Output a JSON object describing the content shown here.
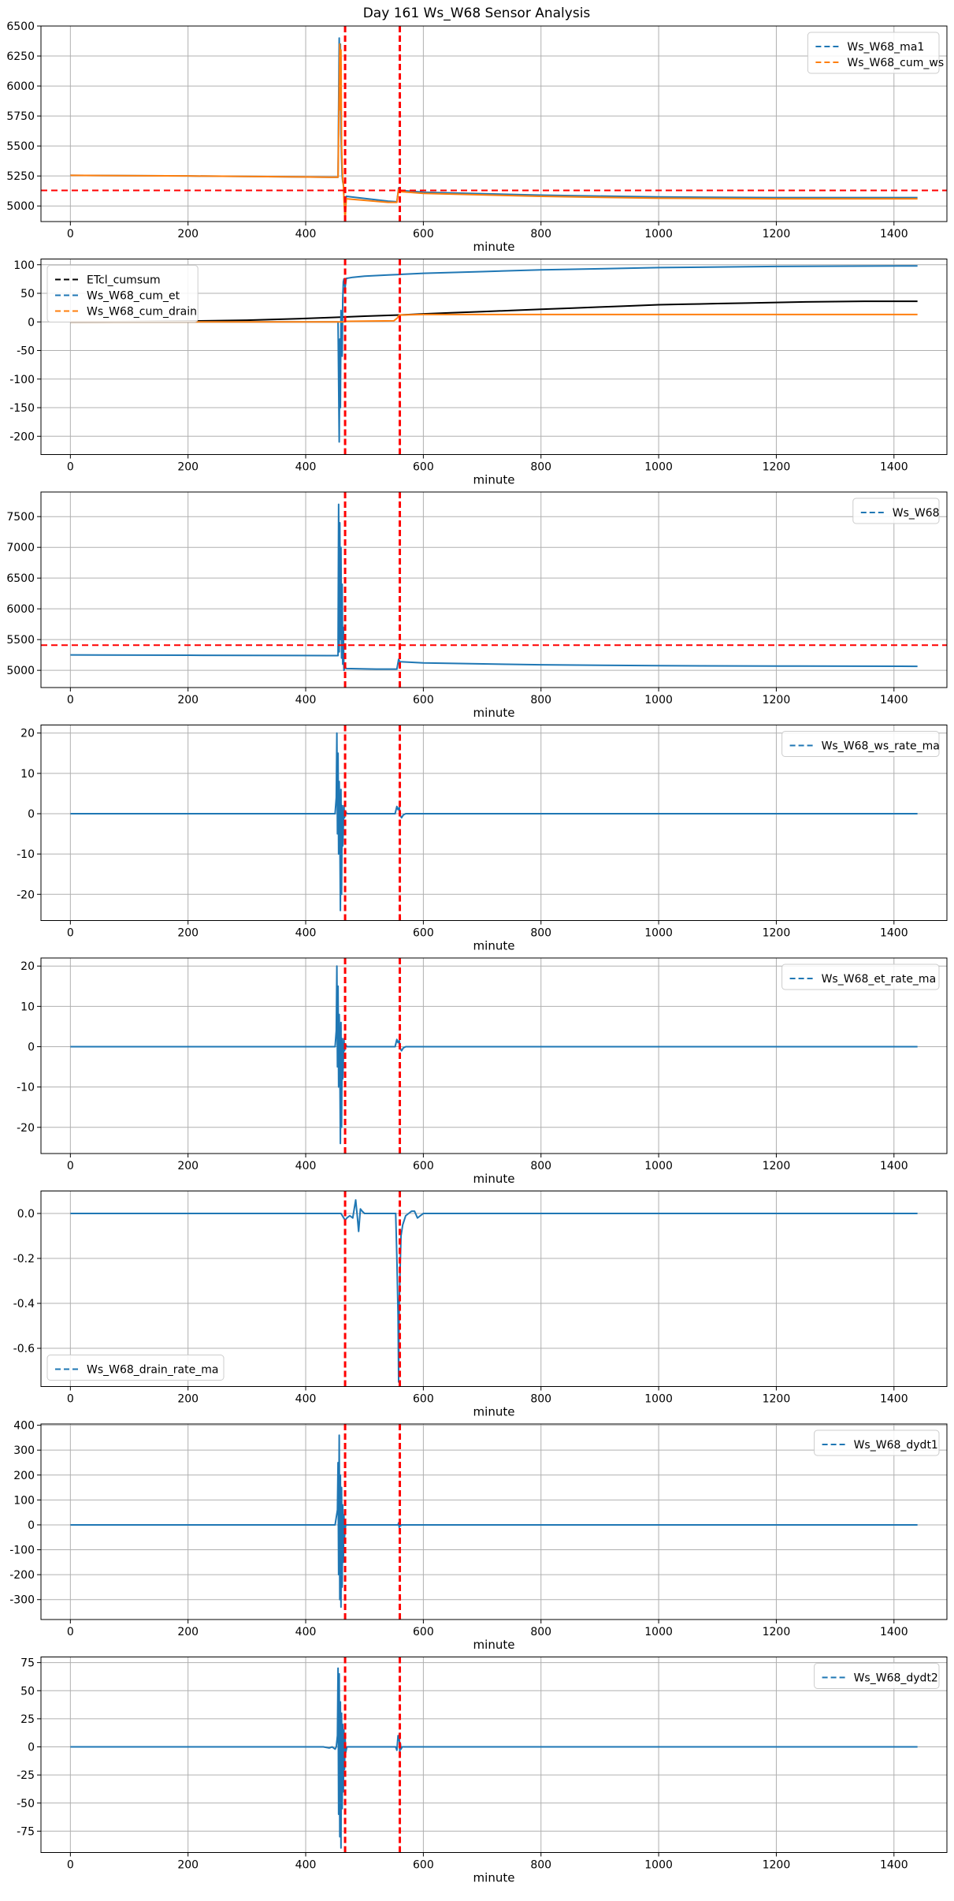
{
  "figure": {
    "title": "Day 161 Ws_W68 Sensor Analysis"
  },
  "colors": {
    "blue": "#1f77b4",
    "orange": "#ff7f0e",
    "black": "#000000",
    "red": "#ff0000",
    "grid": "#b0b0b0"
  },
  "chart_data": [
    {
      "type": "line",
      "xlabel": "minute",
      "ylabel": "",
      "xlim": [
        -50,
        1490
      ],
      "ylim": [
        4870,
        6500
      ],
      "grid": true,
      "xticks": [
        0,
        200,
        400,
        600,
        800,
        1000,
        1200,
        1400
      ],
      "yticks": [
        5000,
        5250,
        5500,
        5750,
        6000,
        6250,
        6500
      ],
      "ytick_labels": [
        "5000",
        "5250",
        "5500",
        "5750",
        "6000",
        "6250",
        "6500"
      ],
      "legend": {
        "position": "top-right",
        "entries": [
          "Ws_W68_ma1",
          "Ws_W68_cum_ws"
        ]
      },
      "vlines": [
        467,
        560
      ],
      "hlines": [
        5130
      ],
      "series": [
        {
          "name": "Ws_W68_ma1",
          "color": "#1f77b4",
          "x": [
            0,
            200,
            440,
            455,
            457,
            458,
            459,
            460,
            461,
            462,
            463,
            464,
            465,
            467,
            469,
            540,
            555,
            558,
            560,
            600,
            800,
            1000,
            1200,
            1440
          ],
          "y": [
            5255,
            5250,
            5240,
            5240,
            6400,
            5900,
            6350,
            5600,
            5400,
            5250,
            5200,
            5180,
            5080,
            4960,
            5080,
            5040,
            5035,
            5150,
            5130,
            5115,
            5090,
            5075,
            5070,
            5070
          ]
        },
        {
          "name": "Ws_W68_cum_ws",
          "color": "#ff7f0e",
          "x": [
            0,
            200,
            440,
            455,
            458,
            459,
            460,
            461,
            462,
            463,
            464,
            465,
            467,
            469,
            540,
            555,
            558,
            560,
            600,
            800,
            1000,
            1200,
            1440
          ],
          "y": [
            5255,
            5250,
            5240,
            5240,
            6350,
            5800,
            6300,
            5500,
            5350,
            5220,
            5180,
            5060,
            4880,
            5060,
            5030,
            5030,
            5140,
            5120,
            5105,
            5080,
            5065,
            5060,
            5060
          ]
        }
      ]
    },
    {
      "type": "line",
      "xlabel": "minute",
      "ylabel": "",
      "xlim": [
        -50,
        1490
      ],
      "ylim": [
        -232,
        110
      ],
      "grid": true,
      "xticks": [
        0,
        200,
        400,
        600,
        800,
        1000,
        1200,
        1400
      ],
      "yticks": [
        -200,
        -150,
        -100,
        -50,
        0,
        50,
        100
      ],
      "ytick_labels": [
        "-200",
        "-150",
        "-100",
        "-50",
        "0",
        "50",
        "100"
      ],
      "legend": {
        "position": "top-left",
        "entries": [
          "ETcl_cumsum",
          "Ws_W68_cum_et",
          "Ws_W68_cum_drain"
        ]
      },
      "vlines": [
        467,
        560
      ],
      "hlines": [],
      "series": [
        {
          "name": "ETcl_cumsum",
          "color": "#000000",
          "x": [
            0,
            100,
            200,
            300,
            400,
            450,
            500,
            560,
            600,
            650,
            700,
            750,
            800,
            850,
            900,
            950,
            1000,
            1050,
            1100,
            1150,
            1200,
            1250,
            1300,
            1350,
            1440
          ],
          "y": [
            0,
            0.5,
            1.5,
            3,
            6,
            8,
            10,
            12,
            14,
            16,
            18,
            20,
            22,
            24,
            26,
            28,
            30,
            31,
            32,
            33,
            34,
            35,
            35.5,
            36,
            36
          ]
        },
        {
          "name": "Ws_W68_cum_et",
          "color": "#1f77b4",
          "x": [
            0,
            200,
            440,
            455,
            457,
            458,
            459,
            460,
            461,
            462,
            463,
            464,
            465,
            467,
            469,
            480,
            500,
            540,
            560,
            600,
            700,
            800,
            900,
            1000,
            1200,
            1440
          ],
          "y": [
            0,
            0,
            0,
            0,
            -210,
            -30,
            -150,
            20,
            -20,
            -60,
            40,
            70,
            75,
            60,
            76,
            78,
            80,
            82,
            83,
            85,
            88,
            91,
            93,
            95,
            97,
            98
          ]
        },
        {
          "name": "Ws_W68_cum_drain",
          "color": "#ff7f0e",
          "x": [
            0,
            200,
            460,
            467,
            469,
            550,
            556,
            558,
            560,
            600,
            700,
            1440
          ],
          "y": [
            0,
            0,
            0,
            0,
            1,
            2,
            7,
            11,
            12,
            13,
            13,
            13
          ]
        }
      ]
    },
    {
      "type": "line",
      "xlabel": "minute",
      "ylabel": "",
      "xlim": [
        -50,
        1490
      ],
      "ylim": [
        4720,
        7900
      ],
      "grid": true,
      "xticks": [
        0,
        200,
        400,
        600,
        800,
        1000,
        1200,
        1400
      ],
      "yticks": [
        5000,
        5500,
        6000,
        6500,
        7000,
        7500
      ],
      "ytick_labels": [
        "5000",
        "5500",
        "6000",
        "6500",
        "7000",
        "7500"
      ],
      "legend": {
        "position": "top-right",
        "entries": [
          "Ws_W68"
        ]
      },
      "vlines": [
        467,
        560
      ],
      "hlines": [
        5410
      ],
      "series": [
        {
          "name": "Ws_W68",
          "color": "#1f77b4",
          "x": [
            0,
            200,
            440,
            455,
            456,
            457,
            458,
            459,
            460,
            461,
            462,
            463,
            464,
            465,
            467,
            469,
            520,
            555,
            558,
            560,
            600,
            800,
            1000,
            1200,
            1440
          ],
          "y": [
            5250,
            5245,
            5240,
            5240,
            7700,
            5300,
            7400,
            5500,
            7000,
            5200,
            6400,
            5100,
            5700,
            5000,
            5050,
            5030,
            5020,
            5020,
            5180,
            5140,
            5120,
            5090,
            5075,
            5070,
            5065
          ]
        }
      ]
    },
    {
      "type": "line",
      "xlabel": "minute",
      "ylabel": "",
      "xlim": [
        -50,
        1490
      ],
      "ylim": [
        -26.5,
        22
      ],
      "grid": true,
      "xticks": [
        0,
        200,
        400,
        600,
        800,
        1000,
        1200,
        1400
      ],
      "yticks": [
        -20,
        -10,
        0,
        10,
        20
      ],
      "ytick_labels": [
        "-20",
        "-10",
        "0",
        "10",
        "20"
      ],
      "legend": {
        "position": "top-right",
        "entries": [
          "Ws_W68_ws_rate_ma"
        ]
      },
      "vlines": [
        467,
        560
      ],
      "hlines": [],
      "series": [
        {
          "name": "Ws_W68_ws_rate_ma",
          "color": "#1f77b4",
          "x": [
            0,
            440,
            450,
            452,
            453,
            454,
            455,
            456,
            457,
            458,
            459,
            460,
            461,
            462,
            463,
            464,
            465,
            466,
            468,
            470,
            480,
            540,
            552,
            555,
            557,
            559,
            561,
            563,
            566,
            570,
            600,
            1440
          ],
          "y": [
            0,
            0,
            0,
            4,
            20,
            -5,
            15,
            -10,
            8,
            -3,
            -24,
            6,
            -20,
            2,
            -8,
            -3,
            2,
            -1,
            0.5,
            0,
            0,
            0,
            0,
            1.8,
            1,
            1.5,
            -0.5,
            -1,
            -0.3,
            0,
            0,
            0
          ]
        }
      ]
    },
    {
      "type": "line",
      "xlabel": "minute",
      "ylabel": "",
      "xlim": [
        -50,
        1490
      ],
      "ylim": [
        -26.5,
        22
      ],
      "grid": true,
      "xticks": [
        0,
        200,
        400,
        600,
        800,
        1000,
        1200,
        1400
      ],
      "yticks": [
        -20,
        -10,
        0,
        10,
        20
      ],
      "ytick_labels": [
        "-20",
        "-10",
        "0",
        "10",
        "20"
      ],
      "legend": {
        "position": "top-right",
        "entries": [
          "Ws_W68_et_rate_ma"
        ]
      },
      "vlines": [
        467,
        560
      ],
      "hlines": [],
      "series": [
        {
          "name": "Ws_W68_et_rate_ma",
          "color": "#1f77b4",
          "x": [
            0,
            440,
            450,
            452,
            453,
            454,
            455,
            456,
            457,
            458,
            459,
            460,
            461,
            462,
            463,
            464,
            465,
            466,
            468,
            470,
            480,
            540,
            552,
            555,
            557,
            559,
            561,
            563,
            566,
            570,
            600,
            1440
          ],
          "y": [
            0,
            0,
            0,
            4,
            20,
            -5,
            15,
            -10,
            8,
            -3,
            -24,
            6,
            -20,
            2,
            -8,
            -3,
            2,
            -1,
            0.5,
            0,
            0,
            0,
            0,
            1.8,
            1,
            1.5,
            -0.5,
            -1,
            -0.3,
            0,
            0,
            0
          ]
        }
      ]
    },
    {
      "type": "line",
      "xlabel": "minute",
      "ylabel": "",
      "xlim": [
        -50,
        1490
      ],
      "ylim": [
        -0.77,
        0.1
      ],
      "grid": true,
      "xticks": [
        0,
        200,
        400,
        600,
        800,
        1000,
        1200,
        1400
      ],
      "yticks": [
        -0.6,
        -0.4,
        -0.2,
        0.0
      ],
      "ytick_labels": [
        "-0.6",
        "-0.4",
        "-0.2",
        "0.0"
      ],
      "legend": {
        "position": "bottom-left",
        "entries": [
          "Ws_W68_drain_rate_ma"
        ]
      },
      "vlines": [
        467,
        560
      ],
      "hlines": [],
      "series": [
        {
          "name": "Ws_W68_drain_rate_ma",
          "color": "#1f77b4",
          "x": [
            0,
            460,
            467,
            470,
            475,
            480,
            485,
            488,
            490,
            493,
            496,
            500,
            540,
            553,
            555,
            557,
            558,
            559,
            560,
            562,
            565,
            570,
            575,
            580,
            585,
            590,
            600,
            1440
          ],
          "y": [
            0,
            0,
            -0.03,
            -0.02,
            -0.01,
            -0.02,
            0.06,
            -0.02,
            -0.08,
            0.02,
            0.01,
            0,
            0,
            0,
            -0.2,
            -0.45,
            -0.75,
            -0.4,
            -0.3,
            -0.1,
            -0.05,
            -0.01,
            0,
            0.01,
            0.01,
            -0.02,
            0,
            0
          ]
        }
      ]
    },
    {
      "type": "line",
      "xlabel": "minute",
      "ylabel": "",
      "xlim": [
        -50,
        1490
      ],
      "ylim": [
        -380,
        405
      ],
      "grid": true,
      "xticks": [
        0,
        200,
        400,
        600,
        800,
        1000,
        1200,
        1400
      ],
      "yticks": [
        -300,
        -200,
        -100,
        0,
        100,
        200,
        300,
        400
      ],
      "ytick_labels": [
        "-300",
        "-200",
        "-100",
        "0",
        "100",
        "200",
        "300",
        "400"
      ],
      "legend": {
        "position": "top-right",
        "entries": [
          "Ws_W68_dydt1"
        ]
      },
      "vlines": [
        467,
        560
      ],
      "hlines": [],
      "series": [
        {
          "name": "Ws_W68_dydt1",
          "color": "#1f77b4",
          "x": [
            0,
            450,
            454,
            455,
            456,
            457,
            458,
            459,
            460,
            461,
            462,
            463,
            464,
            465,
            466,
            468,
            540,
            557,
            558,
            559,
            560,
            561,
            563,
            1440
          ],
          "y": [
            0,
            0,
            60,
            250,
            -200,
            360,
            -300,
            200,
            -330,
            150,
            -250,
            80,
            -150,
            40,
            -50,
            0,
            0,
            0,
            8,
            -10,
            6,
            -4,
            0,
            0
          ]
        }
      ]
    },
    {
      "type": "line",
      "xlabel": "minute",
      "ylabel": "",
      "xlim": [
        -50,
        1490
      ],
      "ylim": [
        -94,
        80
      ],
      "grid": true,
      "xticks": [
        0,
        200,
        400,
        600,
        800,
        1000,
        1200,
        1400
      ],
      "yticks": [
        -75,
        -50,
        -25,
        0,
        25,
        50,
        75
      ],
      "ytick_labels": [
        "-75",
        "-50",
        "-25",
        "0",
        "25",
        "50",
        "75"
      ],
      "legend": {
        "position": "top-right",
        "entries": [
          "Ws_W68_dydt2"
        ]
      },
      "vlines": [
        467,
        560
      ],
      "hlines": [],
      "series": [
        {
          "name": "Ws_W68_dydt2",
          "color": "#1f77b4",
          "x": [
            0,
            430,
            440,
            445,
            450,
            452,
            454,
            455,
            456,
            457,
            458,
            459,
            460,
            461,
            462,
            463,
            464,
            465,
            466,
            467,
            468,
            470,
            540,
            553,
            555,
            557,
            558,
            559,
            560,
            561,
            562,
            564,
            570,
            1440
          ],
          "y": [
            0,
            0,
            -1,
            0,
            -2,
            0,
            10,
            70,
            -60,
            65,
            -80,
            40,
            -90,
            30,
            -55,
            20,
            -40,
            15,
            -20,
            8,
            -5,
            0,
            0,
            0,
            -3,
            10,
            6,
            9,
            -5,
            3,
            -2,
            0,
            0,
            0
          ]
        }
      ]
    }
  ]
}
